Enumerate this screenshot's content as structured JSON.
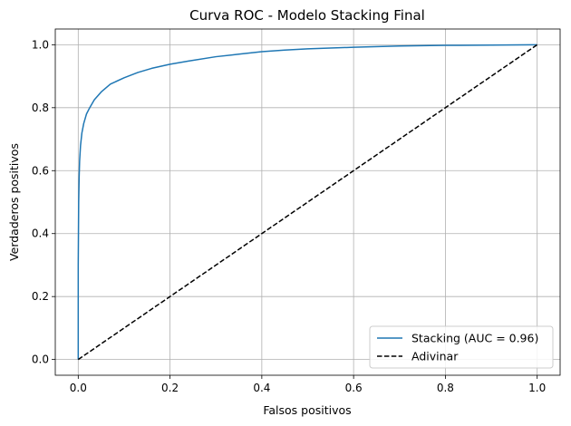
{
  "chart_data": {
    "type": "line",
    "title": "Curva ROC - Modelo Stacking Final",
    "xlabel": "Falsos positivos",
    "ylabel": "Verdaderos positivos",
    "xlim": [
      -0.05,
      1.05
    ],
    "ylim": [
      -0.05,
      1.05
    ],
    "x_ticks": [
      "0.0",
      "0.2",
      "0.4",
      "0.6",
      "0.8",
      "1.0"
    ],
    "y_ticks": [
      "0.0",
      "0.2",
      "0.4",
      "0.6",
      "0.8",
      "1.0"
    ],
    "grid": true,
    "legend_position": "lower-right",
    "series": [
      {
        "name": "Stacking (AUC = 0.96)",
        "color": "#1f77b4",
        "style": "solid",
        "x": [
          0,
          0.0,
          0.001,
          0.002,
          0.003,
          0.005,
          0.008,
          0.012,
          0.018,
          0.025,
          0.035,
          0.05,
          0.07,
          0.1,
          0.13,
          0.16,
          0.2,
          0.24,
          0.3,
          0.35,
          0.4,
          0.45,
          0.5,
          0.6,
          0.7,
          0.8,
          0.9,
          1.0
        ],
        "y": [
          0,
          0.3,
          0.5,
          0.58,
          0.63,
          0.68,
          0.72,
          0.75,
          0.78,
          0.8,
          0.825,
          0.85,
          0.875,
          0.895,
          0.912,
          0.925,
          0.938,
          0.948,
          0.962,
          0.97,
          0.978,
          0.983,
          0.987,
          0.992,
          0.996,
          0.998,
          0.999,
          1.0
        ]
      },
      {
        "name": "Adivinar",
        "color": "#000000",
        "style": "dashed",
        "x": [
          0,
          1
        ],
        "y": [
          0,
          1
        ]
      }
    ]
  }
}
